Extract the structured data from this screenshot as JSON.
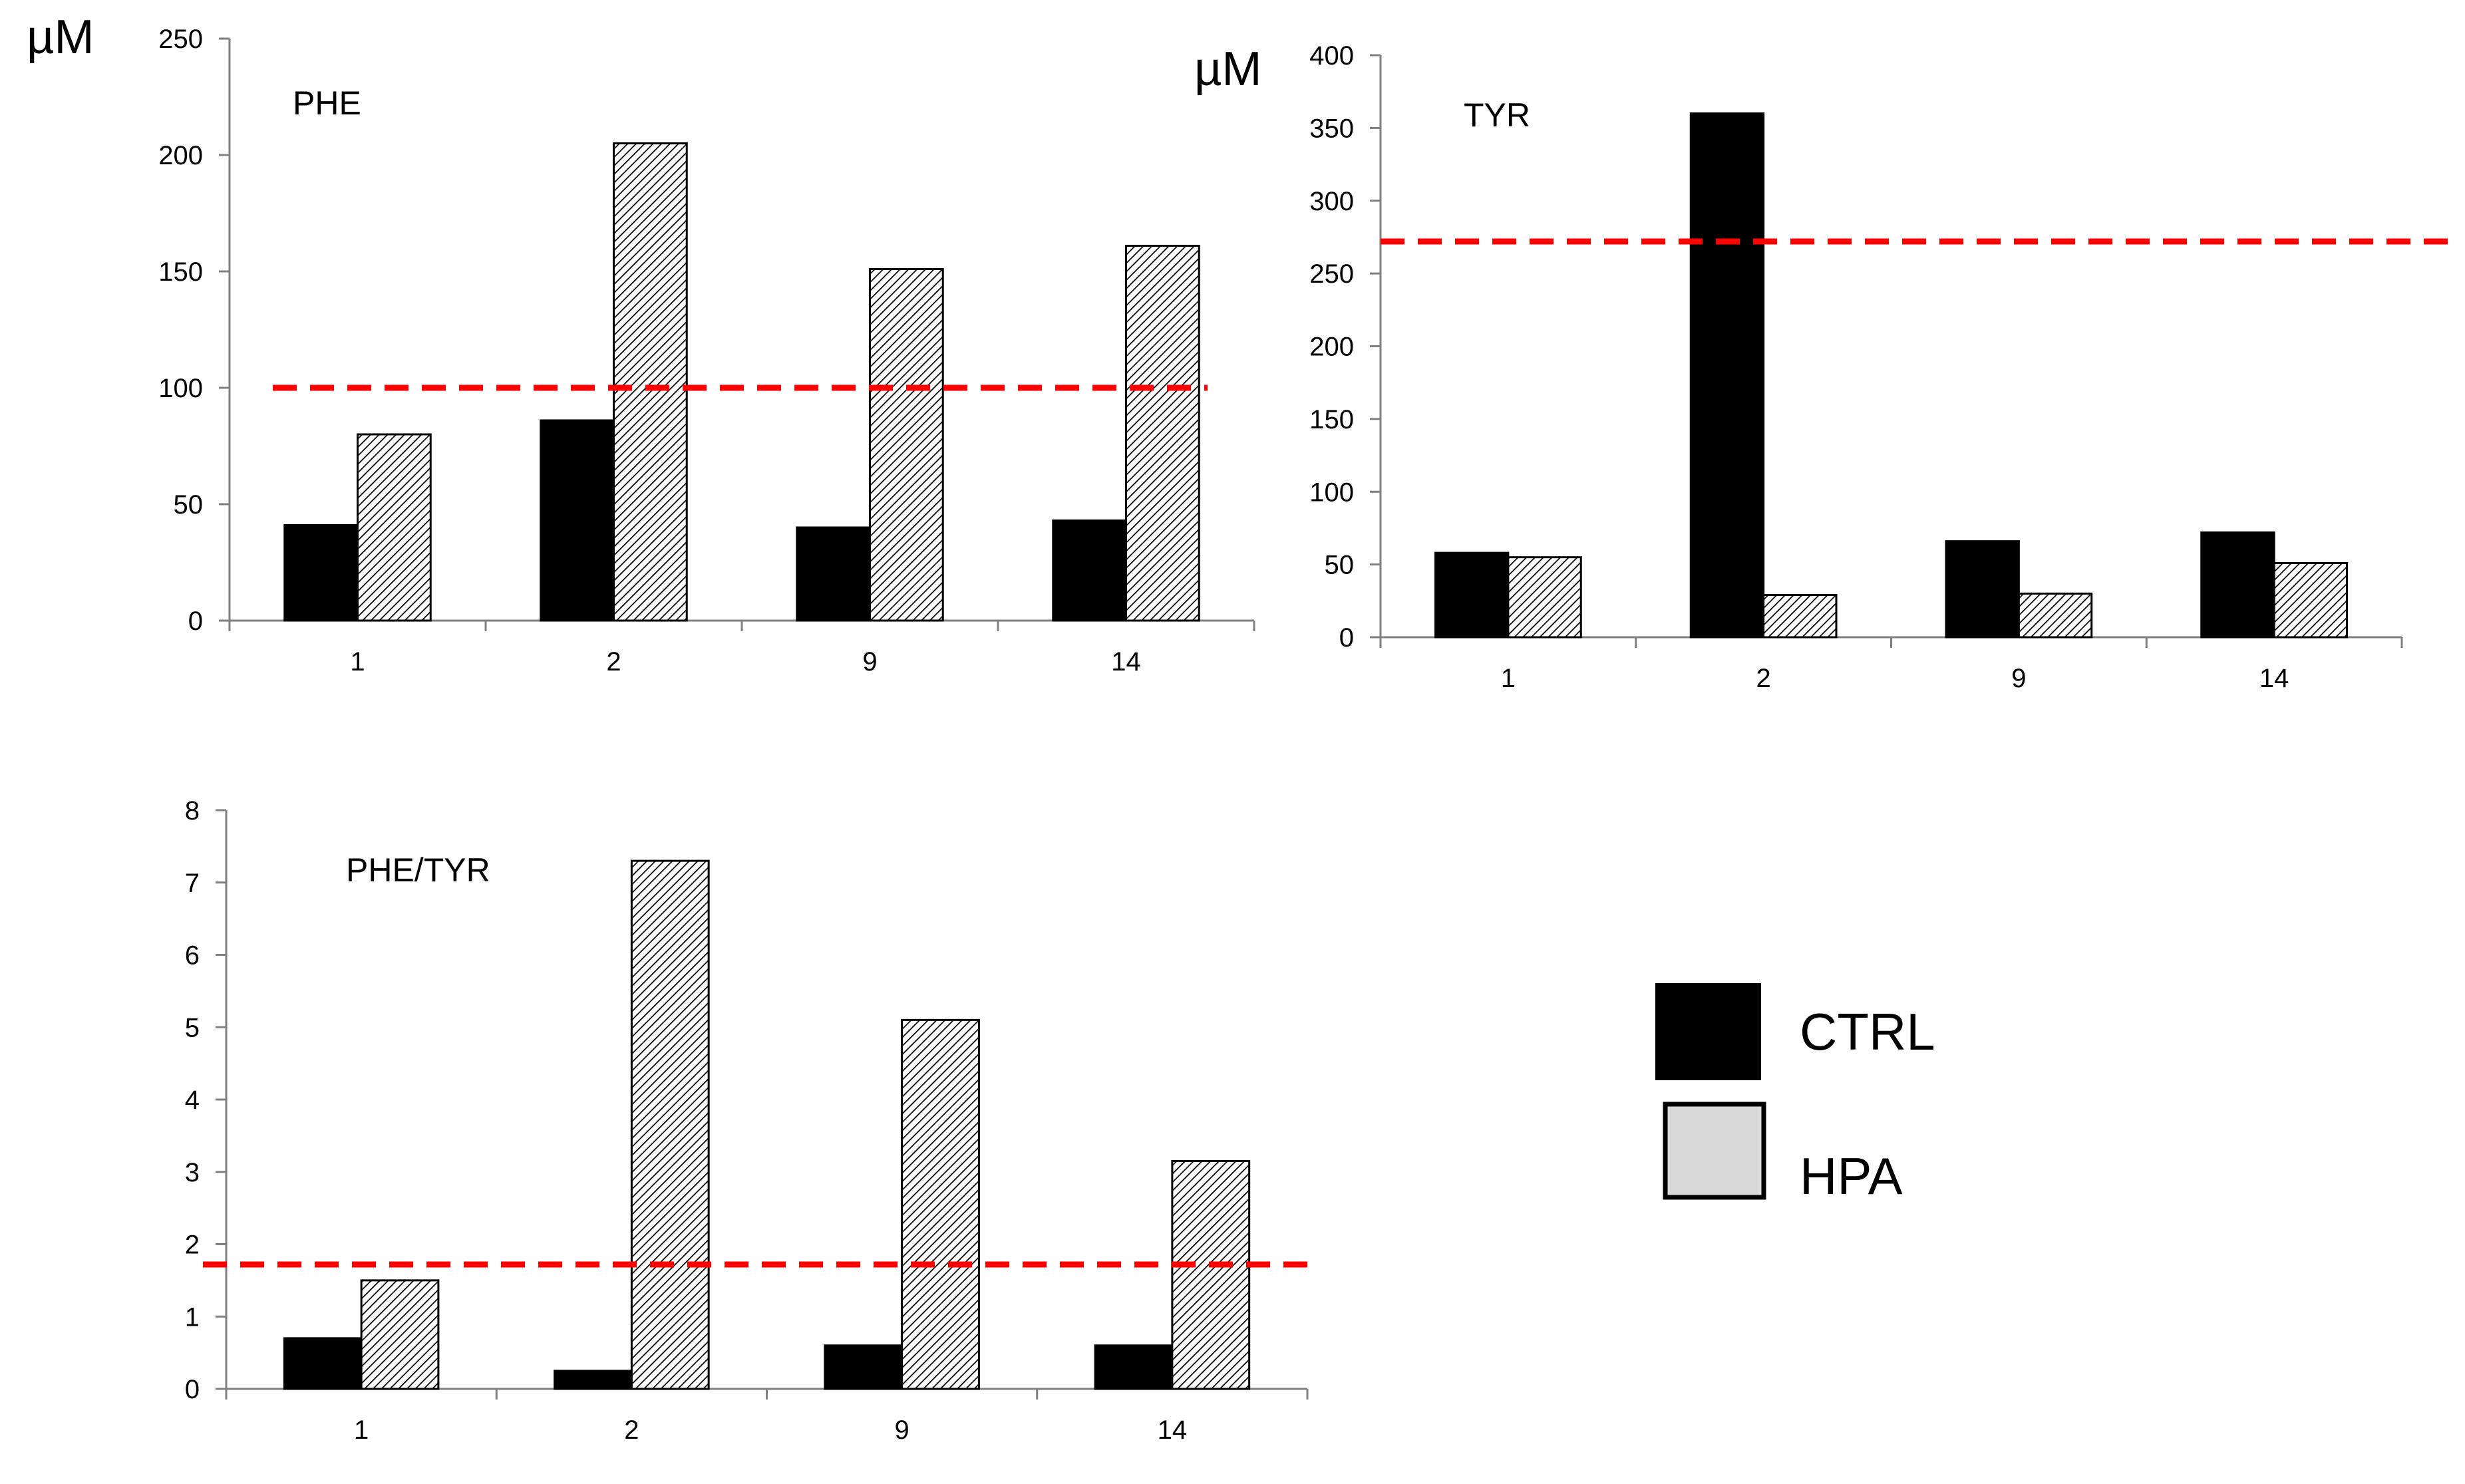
{
  "colors": {
    "ctrl": "#000000",
    "hpa_hatch": "#000000",
    "hpa_bg": "#ffffff",
    "legend_hpa": "#d9d9d9",
    "threshold": "#ff0000",
    "axis": "#808080"
  },
  "legend": {
    "items": [
      "CTRL",
      "HPA"
    ]
  },
  "chart_data": [
    {
      "type": "bar",
      "title": "PHE",
      "unit_label": "µM",
      "categories": [
        "1",
        "2",
        "9",
        "14"
      ],
      "series": [
        {
          "name": "CTRL",
          "values": [
            41,
            86,
            40,
            43
          ]
        },
        {
          "name": "HPA",
          "values": [
            80,
            205,
            151,
            161
          ]
        }
      ],
      "ylim": [
        0,
        250
      ],
      "yticks": [
        "0",
        "50",
        "100",
        "150",
        "200",
        "250"
      ],
      "threshold": 100
    },
    {
      "type": "bar",
      "title": "TYR",
      "unit_label": "µM",
      "categories": [
        "1",
        "2",
        "9",
        "14"
      ],
      "series": [
        {
          "name": "CTRL",
          "values": [
            58,
            360,
            66,
            72
          ]
        },
        {
          "name": "HPA",
          "values": [
            55,
            29,
            30,
            51
          ]
        }
      ],
      "ylim": [
        0,
        400
      ],
      "yticks": [
        "0",
        "50",
        "100",
        "150",
        "200",
        "250",
        "300",
        "350",
        "400"
      ],
      "threshold": 272
    },
    {
      "type": "bar",
      "title": "PHE/TYR",
      "unit_label": "",
      "categories": [
        "1",
        "2",
        "9",
        "14"
      ],
      "series": [
        {
          "name": "CTRL",
          "values": [
            0.7,
            0.25,
            0.6,
            0.6
          ]
        },
        {
          "name": "HPA",
          "values": [
            1.5,
            7.3,
            5.1,
            3.15
          ]
        }
      ],
      "ylim": [
        0,
        8
      ],
      "yticks": [
        "0",
        "1",
        "2",
        "3",
        "4",
        "5",
        "6",
        "7",
        "8"
      ],
      "threshold": 1.72
    }
  ]
}
